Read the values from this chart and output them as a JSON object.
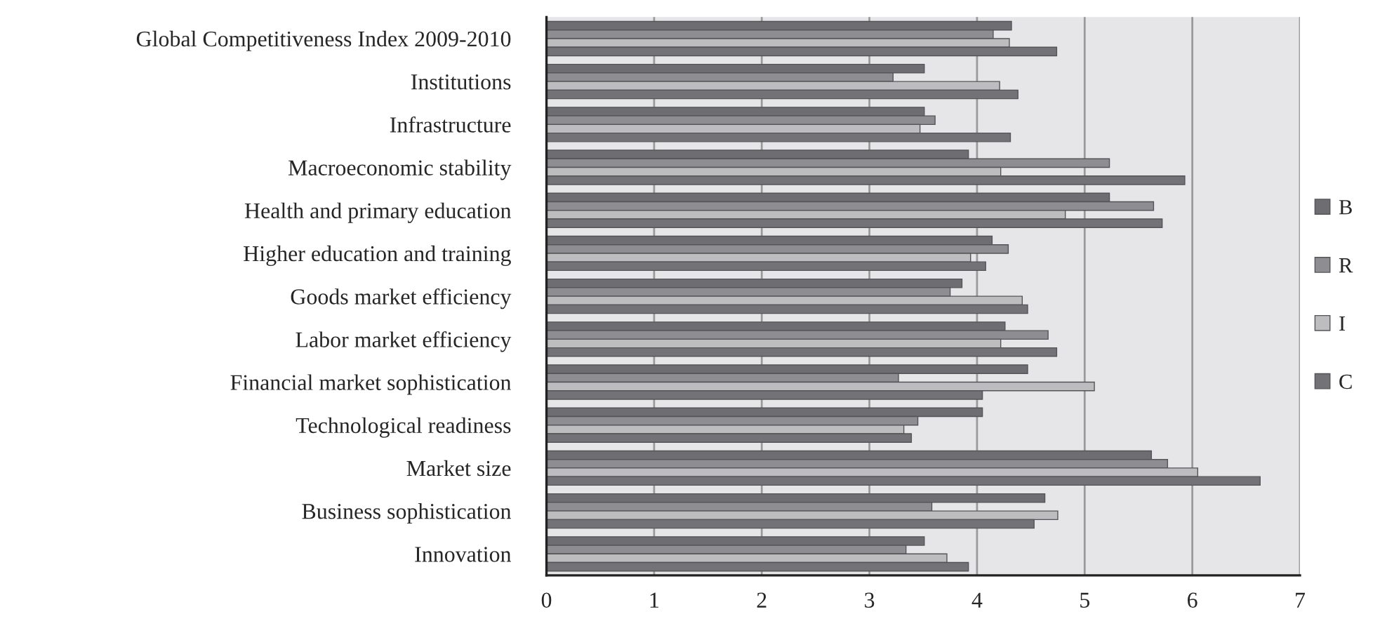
{
  "chart_data": {
    "type": "bar",
    "orientation": "horizontal",
    "categories": [
      "Global Competitiveness Index 2009-2010",
      "Institutions",
      "Infrastructure",
      "Macroeconomic stability",
      "Health and primary education",
      "Higher education and training",
      "Goods market efficiency",
      "Labor market efficiency",
      "Financial market sophistication",
      "Technological readiness",
      "Market size",
      "Business sophistication",
      "Innovation"
    ],
    "series": [
      {
        "name": "B",
        "color": "#6e6e72",
        "values": [
          4.32,
          3.51,
          3.51,
          3.92,
          5.23,
          4.14,
          3.86,
          4.26,
          4.47,
          4.05,
          5.62,
          4.63,
          3.51
        ]
      },
      {
        "name": "R",
        "color": "#8e8e92",
        "values": [
          4.15,
          3.22,
          3.61,
          5.23,
          5.64,
          4.29,
          3.75,
          4.66,
          3.27,
          3.45,
          5.77,
          3.58,
          3.34
        ]
      },
      {
        "name": "I",
        "color": "#bdbdc0",
        "values": [
          4.3,
          4.21,
          3.47,
          4.22,
          4.82,
          3.94,
          4.42,
          4.22,
          5.09,
          3.32,
          6.05,
          4.75,
          3.72
        ]
      },
      {
        "name": "C",
        "color": "#737377",
        "values": [
          4.74,
          4.38,
          4.31,
          5.93,
          5.72,
          4.08,
          4.47,
          4.74,
          4.05,
          3.39,
          6.63,
          4.53,
          3.92
        ]
      }
    ],
    "xlim": [
      0,
      7
    ],
    "xticks": [
      0,
      1,
      2,
      3,
      4,
      5,
      6,
      7
    ],
    "grid": "x",
    "legend": "right"
  }
}
